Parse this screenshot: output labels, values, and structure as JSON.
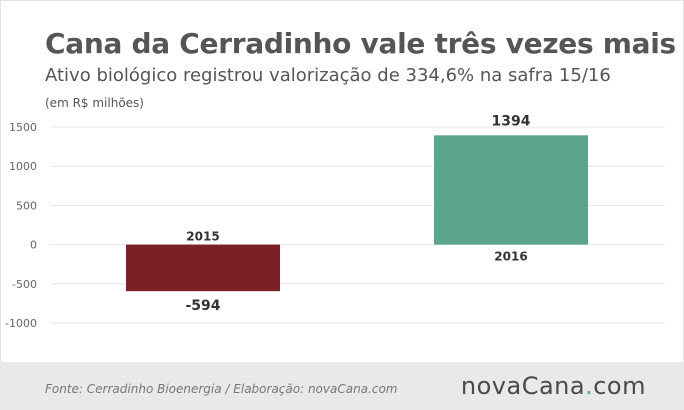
{
  "header": {
    "title": "Cana da Cerradinho vale três vezes mais",
    "subtitle": "Ativo biológico registrou valorização de 334,6% na safra 15/16",
    "unit_note": "(em R$ milhões)"
  },
  "footer": {
    "source": "Fonte: Cerradinho Bioenergia / Elaboração: novaCana.com",
    "logo_main": "novaCana",
    "logo_dot": ".",
    "logo_tld": "com"
  },
  "colors": {
    "negative_bar": "#7b2024",
    "positive_bar": "#5aa58c",
    "grid": "#e6e6e6",
    "text": "#333333"
  },
  "chart_data": {
    "type": "bar",
    "categories": [
      "2015",
      "2016"
    ],
    "values": [
      -594,
      1394
    ],
    "data_labels": [
      "-594",
      "1394"
    ],
    "title": "Cana da Cerradinho vale três vezes mais",
    "subtitle": "Ativo biológico registrou valorização de 334,6% na safra 15/16",
    "xlabel": "",
    "ylabel": "(em R$ milhões)",
    "ylim": [
      -1000,
      1500
    ],
    "yticks": [
      1500,
      1000,
      500,
      0,
      -500,
      -1000
    ],
    "grid": true,
    "legend": "none"
  }
}
